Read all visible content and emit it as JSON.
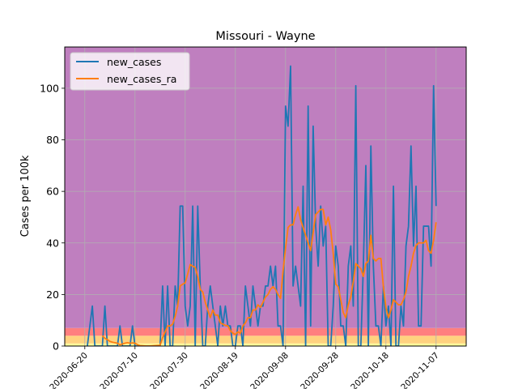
{
  "chart_data": {
    "type": "line",
    "title": "Missouri - Wayne",
    "xlabel": "",
    "ylabel": "Cases per 100k",
    "xlim": [
      "2020-06-12",
      "2020-11-19"
    ],
    "ylim": [
      0,
      116
    ],
    "x_ticks": [
      "2020-06-20",
      "2020-07-10",
      "2020-07-30",
      "2020-08-19",
      "2020-09-08",
      "2020-09-28",
      "2020-10-18",
      "2020-11-07"
    ],
    "x_tick_labels": [
      "2020-06-20",
      "2020-07-10",
      "2020-07-30",
      "2020-08-19",
      "2020-09-08",
      "2020-09-28",
      "2020-10-18",
      "2020-11-07"
    ],
    "y_ticks": [
      0,
      20,
      40,
      60,
      80,
      100
    ],
    "y_tick_labels": [
      "0",
      "20",
      "40",
      "60",
      "80",
      "100"
    ],
    "grid": true,
    "legend": "top-left",
    "background_bands": [
      {
        "from": 0,
        "to": 1,
        "color": "#ffff99"
      },
      {
        "from": 1,
        "to": 4,
        "color": "#ffd27f"
      },
      {
        "from": 4,
        "to": 7,
        "color": "#ff7f7f"
      },
      {
        "from": 7,
        "to": 116,
        "color": "#bf7fbf"
      }
    ],
    "series": [
      {
        "name": "new_cases",
        "color": "#1f77b4",
        "points": [
          [
            "2020-06-21",
            0
          ],
          [
            "2020-06-23",
            15.5
          ],
          [
            "2020-06-24",
            0
          ],
          [
            "2020-06-27",
            0
          ],
          [
            "2020-06-28",
            15.5
          ],
          [
            "2020-06-29",
            0
          ],
          [
            "2020-07-03",
            0
          ],
          [
            "2020-07-04",
            7.8
          ],
          [
            "2020-07-05",
            0
          ],
          [
            "2020-07-08",
            0
          ],
          [
            "2020-07-09",
            7.8
          ],
          [
            "2020-07-10",
            0
          ],
          [
            "2020-07-20",
            0
          ],
          [
            "2020-07-21",
            23.3
          ],
          [
            "2020-07-22",
            0
          ],
          [
            "2020-07-23",
            23.3
          ],
          [
            "2020-07-24",
            0
          ],
          [
            "2020-07-25",
            0
          ],
          [
            "2020-07-26",
            23.3
          ],
          [
            "2020-07-27",
            15.5
          ],
          [
            "2020-07-28",
            54.3
          ],
          [
            "2020-07-29",
            54.3
          ],
          [
            "2020-07-30",
            15.5
          ],
          [
            "2020-07-31",
            7.8
          ],
          [
            "2020-08-01",
            15.5
          ],
          [
            "2020-08-02",
            54.3
          ],
          [
            "2020-08-03",
            0
          ],
          [
            "2020-08-04",
            54.3
          ],
          [
            "2020-08-05",
            23.3
          ],
          [
            "2020-08-06",
            0
          ],
          [
            "2020-08-07",
            0
          ],
          [
            "2020-08-08",
            15.5
          ],
          [
            "2020-08-09",
            23.3
          ],
          [
            "2020-08-10",
            15.5
          ],
          [
            "2020-08-11",
            7.8
          ],
          [
            "2020-08-12",
            0
          ],
          [
            "2020-08-13",
            15.5
          ],
          [
            "2020-08-14",
            7.8
          ],
          [
            "2020-08-15",
            15.5
          ],
          [
            "2020-08-16",
            7.8
          ],
          [
            "2020-08-17",
            7.8
          ],
          [
            "2020-08-18",
            0
          ],
          [
            "2020-08-19",
            0
          ],
          [
            "2020-08-20",
            7.8
          ],
          [
            "2020-08-21",
            7.8
          ],
          [
            "2020-08-22",
            0
          ],
          [
            "2020-08-23",
            23.3
          ],
          [
            "2020-08-24",
            15.5
          ],
          [
            "2020-08-25",
            7.8
          ],
          [
            "2020-08-26",
            23.3
          ],
          [
            "2020-08-27",
            15.5
          ],
          [
            "2020-08-28",
            7.8
          ],
          [
            "2020-08-29",
            15.5
          ],
          [
            "2020-08-30",
            15.5
          ],
          [
            "2020-08-31",
            23.3
          ],
          [
            "2020-09-01",
            23.3
          ],
          [
            "2020-09-02",
            31
          ],
          [
            "2020-09-03",
            23.3
          ],
          [
            "2020-09-04",
            31
          ],
          [
            "2020-09-05",
            7.8
          ],
          [
            "2020-09-06",
            7.8
          ],
          [
            "2020-09-07",
            0
          ],
          [
            "2020-09-08",
            93.1
          ],
          [
            "2020-09-09",
            85.3
          ],
          [
            "2020-09-10",
            108.6
          ],
          [
            "2020-09-11",
            23.3
          ],
          [
            "2020-09-12",
            31
          ],
          [
            "2020-09-13",
            23.3
          ],
          [
            "2020-09-14",
            15.5
          ],
          [
            "2020-09-15",
            62
          ],
          [
            "2020-09-16",
            0
          ],
          [
            "2020-09-17",
            93.1
          ],
          [
            "2020-09-18",
            7.8
          ],
          [
            "2020-09-19",
            85.3
          ],
          [
            "2020-09-20",
            46.5
          ],
          [
            "2020-09-21",
            31
          ],
          [
            "2020-09-22",
            54.3
          ],
          [
            "2020-09-23",
            38.8
          ],
          [
            "2020-09-24",
            46.5
          ],
          [
            "2020-09-25",
            0
          ],
          [
            "2020-09-26",
            0
          ],
          [
            "2020-09-27",
            15.5
          ],
          [
            "2020-09-28",
            38.8
          ],
          [
            "2020-09-29",
            31
          ],
          [
            "2020-09-30",
            7.8
          ],
          [
            "2020-10-01",
            7.8
          ],
          [
            "2020-10-02",
            0
          ],
          [
            "2020-10-03",
            31
          ],
          [
            "2020-10-04",
            38.8
          ],
          [
            "2020-10-05",
            15.5
          ],
          [
            "2020-10-06",
            101
          ],
          [
            "2020-10-07",
            0
          ],
          [
            "2020-10-08",
            0
          ],
          [
            "2020-10-09",
            31
          ],
          [
            "2020-10-10",
            70
          ],
          [
            "2020-10-11",
            0
          ],
          [
            "2020-10-12",
            77.6
          ],
          [
            "2020-10-13",
            31
          ],
          [
            "2020-10-14",
            7.8
          ],
          [
            "2020-10-15",
            7.8
          ],
          [
            "2020-10-16",
            0
          ],
          [
            "2020-10-17",
            23.3
          ],
          [
            "2020-10-18",
            7.8
          ],
          [
            "2020-10-19",
            15.5
          ],
          [
            "2020-10-20",
            0
          ],
          [
            "2020-10-21",
            62
          ],
          [
            "2020-10-22",
            0
          ],
          [
            "2020-10-23",
            0
          ],
          [
            "2020-10-24",
            15.5
          ],
          [
            "2020-10-25",
            7.8
          ],
          [
            "2020-10-26",
            38.8
          ],
          [
            "2020-10-27",
            46.5
          ],
          [
            "2020-10-28",
            77.6
          ],
          [
            "2020-10-29",
            38.8
          ],
          [
            "2020-10-30",
            62
          ],
          [
            "2020-10-31",
            7.8
          ],
          [
            "2020-11-01",
            7.8
          ],
          [
            "2020-11-02",
            46.5
          ],
          [
            "2020-11-03",
            46.5
          ],
          [
            "2020-11-04",
            46.5
          ],
          [
            "2020-11-05",
            31
          ],
          [
            "2020-11-06",
            101
          ],
          [
            "2020-11-07",
            54.3
          ]
        ]
      },
      {
        "name": "new_cases_ra",
        "color": "#ff7f0e",
        "points": [
          [
            "2020-06-27",
            4
          ],
          [
            "2020-06-28",
            3
          ],
          [
            "2020-06-29",
            2.5
          ],
          [
            "2020-06-30",
            1.8
          ],
          [
            "2020-07-01",
            1.5
          ],
          [
            "2020-07-02",
            1.3
          ],
          [
            "2020-07-03",
            1.1
          ],
          [
            "2020-07-04",
            0.5
          ],
          [
            "2020-07-06",
            1.1
          ],
          [
            "2020-07-07",
            1.3
          ],
          [
            "2020-07-08",
            1.1
          ],
          [
            "2020-07-09",
            1.2
          ],
          [
            "2020-07-10",
            1.1
          ],
          [
            "2020-07-11",
            0.5
          ],
          [
            "2020-07-12",
            0.2
          ],
          [
            "2020-07-15",
            0
          ],
          [
            "2020-07-20",
            0.3
          ],
          [
            "2020-07-21",
            3.3
          ],
          [
            "2020-07-22",
            5.5
          ],
          [
            "2020-07-23",
            7.8
          ],
          [
            "2020-07-24",
            7.8
          ],
          [
            "2020-07-25",
            8.5
          ],
          [
            "2020-07-26",
            11.5
          ],
          [
            "2020-07-27",
            15.5
          ],
          [
            "2020-07-28",
            23.3
          ],
          [
            "2020-07-29",
            24
          ],
          [
            "2020-07-30",
            24.5
          ],
          [
            "2020-07-31",
            28
          ],
          [
            "2020-08-01",
            31.6
          ],
          [
            "2020-08-02",
            31
          ],
          [
            "2020-08-03",
            30.5
          ],
          [
            "2020-08-04",
            27
          ],
          [
            "2020-08-05",
            22
          ],
          [
            "2020-08-06",
            21
          ],
          [
            "2020-08-07",
            17
          ],
          [
            "2020-08-08",
            14
          ],
          [
            "2020-08-09",
            11
          ],
          [
            "2020-08-10",
            14
          ],
          [
            "2020-08-11",
            12
          ],
          [
            "2020-08-12",
            12
          ],
          [
            "2020-08-13",
            9
          ],
          [
            "2020-08-14",
            8.5
          ],
          [
            "2020-08-15",
            8
          ],
          [
            "2020-08-16",
            7.8
          ],
          [
            "2020-08-17",
            6
          ],
          [
            "2020-08-18",
            5
          ],
          [
            "2020-08-19",
            4.5
          ],
          [
            "2020-08-20",
            5.5
          ],
          [
            "2020-08-21",
            5
          ],
          [
            "2020-08-22",
            7.8
          ],
          [
            "2020-08-23",
            9
          ],
          [
            "2020-08-24",
            11
          ],
          [
            "2020-08-25",
            11
          ],
          [
            "2020-08-26",
            14
          ],
          [
            "2020-08-27",
            14
          ],
          [
            "2020-08-28",
            16
          ],
          [
            "2020-08-29",
            15
          ],
          [
            "2020-08-30",
            17
          ],
          [
            "2020-08-31",
            19
          ],
          [
            "2020-09-01",
            20
          ],
          [
            "2020-09-02",
            22
          ],
          [
            "2020-09-03",
            23
          ],
          [
            "2020-09-04",
            22
          ],
          [
            "2020-09-05",
            20
          ],
          [
            "2020-09-06",
            18.5
          ],
          [
            "2020-09-07",
            29
          ],
          [
            "2020-09-08",
            38
          ],
          [
            "2020-09-09",
            46
          ],
          [
            "2020-09-10",
            47
          ],
          [
            "2020-09-11",
            47
          ],
          [
            "2020-09-12",
            51
          ],
          [
            "2020-09-13",
            54
          ],
          [
            "2020-09-14",
            49
          ],
          [
            "2020-09-15",
            46
          ],
          [
            "2020-09-16",
            43
          ],
          [
            "2020-09-17",
            40
          ],
          [
            "2020-09-18",
            37
          ],
          [
            "2020-09-19",
            44
          ],
          [
            "2020-09-20",
            51
          ],
          [
            "2020-09-21",
            52
          ],
          [
            "2020-09-22",
            53
          ],
          [
            "2020-09-23",
            53
          ],
          [
            "2020-09-24",
            47
          ],
          [
            "2020-09-25",
            50
          ],
          [
            "2020-09-26",
            45
          ],
          [
            "2020-09-27",
            36
          ],
          [
            "2020-09-28",
            24
          ],
          [
            "2020-09-29",
            23
          ],
          [
            "2020-09-30",
            18
          ],
          [
            "2020-10-01",
            13
          ],
          [
            "2020-10-02",
            11
          ],
          [
            "2020-10-03",
            16
          ],
          [
            "2020-10-04",
            19
          ],
          [
            "2020-10-05",
            25
          ],
          [
            "2020-10-06",
            32
          ],
          [
            "2020-10-07",
            31
          ],
          [
            "2020-10-08",
            30
          ],
          [
            "2020-10-09",
            27
          ],
          [
            "2020-10-10",
            32
          ],
          [
            "2020-10-11",
            33
          ],
          [
            "2020-10-12",
            43
          ],
          [
            "2020-10-13",
            34
          ],
          [
            "2020-10-14",
            33
          ],
          [
            "2020-10-15",
            34
          ],
          [
            "2020-10-16",
            34
          ],
          [
            "2020-10-17",
            23
          ],
          [
            "2020-10-18",
            15
          ],
          [
            "2020-10-19",
            11
          ],
          [
            "2020-10-20",
            14
          ],
          [
            "2020-10-21",
            18
          ],
          [
            "2020-10-22",
            17
          ],
          [
            "2020-10-23",
            16
          ],
          [
            "2020-10-24",
            16
          ],
          [
            "2020-10-25",
            18
          ],
          [
            "2020-10-26",
            21
          ],
          [
            "2020-10-27",
            27
          ],
          [
            "2020-10-28",
            31
          ],
          [
            "2020-10-29",
            36
          ],
          [
            "2020-10-30",
            39
          ],
          [
            "2020-10-31",
            40
          ],
          [
            "2020-11-01",
            40
          ],
          [
            "2020-11-02",
            40
          ],
          [
            "2020-11-03",
            41
          ],
          [
            "2020-11-04",
            37
          ],
          [
            "2020-11-05",
            36
          ],
          [
            "2020-11-06",
            41
          ],
          [
            "2020-11-07",
            48
          ]
        ]
      }
    ]
  }
}
